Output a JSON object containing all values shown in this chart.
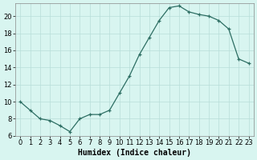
{
  "x": [
    0,
    1,
    2,
    3,
    4,
    5,
    6,
    7,
    8,
    9,
    10,
    11,
    12,
    13,
    14,
    15,
    16,
    17,
    18,
    19,
    20,
    21,
    22,
    23
  ],
  "y": [
    10,
    9,
    8,
    7.8,
    7.2,
    6.5,
    8,
    8.5,
    8.5,
    9,
    11,
    13,
    15.5,
    17.5,
    19.5,
    21,
    21.2,
    20.5,
    20.2,
    20,
    19.5,
    18.5,
    15,
    14.5
  ],
  "xlabel": "Humidex (Indice chaleur)",
  "line_color": "#2d6e63",
  "background_color": "#d8f5f0",
  "grid_color": "#b8ddd8",
  "ylim": [
    6,
    21.5
  ],
  "xlim": [
    -0.5,
    23.5
  ],
  "yticks": [
    6,
    8,
    10,
    12,
    14,
    16,
    18,
    20
  ],
  "xticks": [
    0,
    1,
    2,
    3,
    4,
    5,
    6,
    7,
    8,
    9,
    10,
    11,
    12,
    13,
    14,
    15,
    16,
    17,
    18,
    19,
    20,
    21,
    22,
    23
  ],
  "xlabel_fontsize": 7,
  "tick_fontsize": 6
}
